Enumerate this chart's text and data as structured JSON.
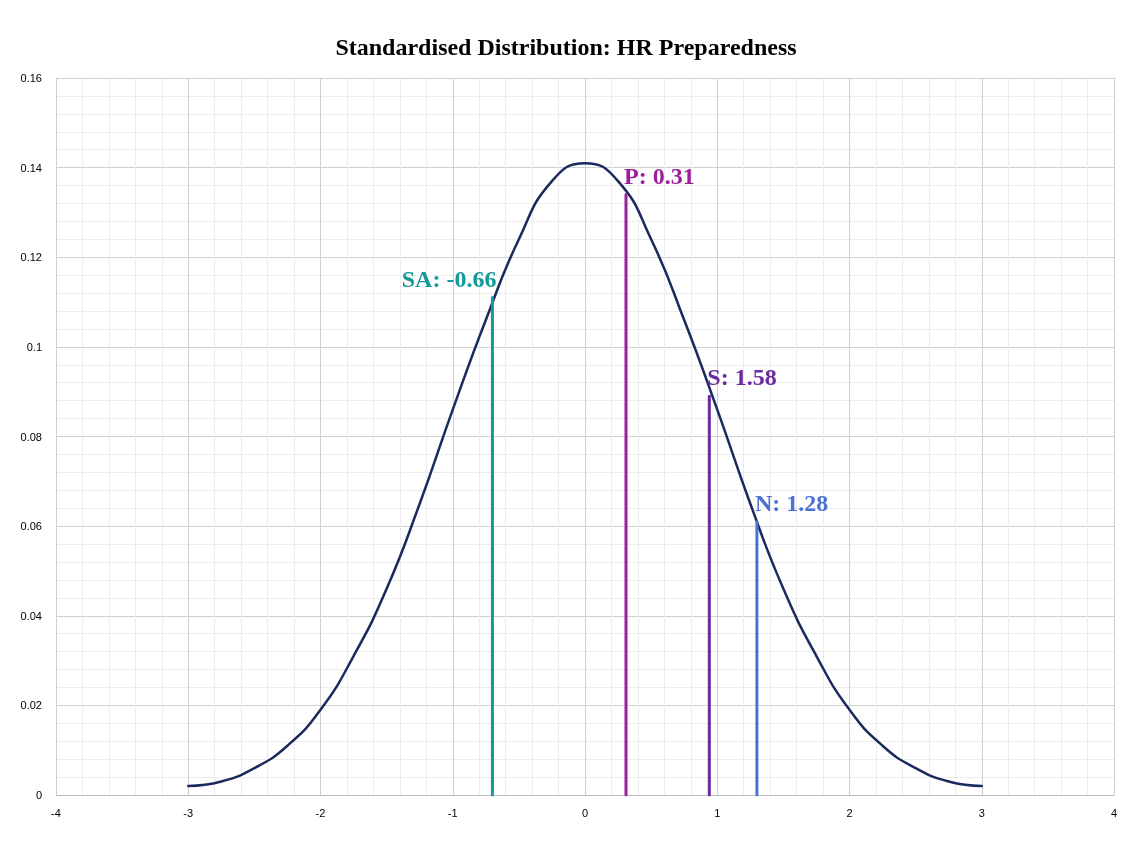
{
  "chart_data": {
    "type": "line",
    "title": "Standardised Distribution: HR Preparedness",
    "x": [
      -3,
      -2.75,
      -2.5,
      -2.25,
      -2,
      -1.75,
      -1.5,
      -1.25,
      -1,
      -0.75,
      -0.5,
      -0.25,
      0,
      0.25,
      0.5,
      0.75,
      1,
      1.25,
      1.5,
      1.75,
      2,
      2.25,
      2.5,
      2.75,
      3
    ],
    "series": [
      {
        "color": "#1b2a5e",
        "values": [
          0.002,
          0.003,
          0.006,
          0.011,
          0.019,
          0.031,
          0.046,
          0.065,
          0.086,
          0.106,
          0.124,
          0.137,
          0.141,
          0.137,
          0.124,
          0.106,
          0.086,
          0.065,
          0.046,
          0.031,
          0.019,
          0.011,
          0.006,
          0.003,
          0.002
        ]
      },
      {
        "name": "SA: -0.66",
        "color": "#13999a",
        "x": [
          -0.7,
          -0.7
        ],
        "values": [
          0,
          0.111
        ]
      },
      {
        "name": "P: 0.31",
        "color": "#9b1f9b",
        "x": [
          0.31,
          0.31
        ],
        "values": [
          0,
          0.134
        ]
      },
      {
        "name": "S: 1.58",
        "color": "#6a2aa0",
        "x": [
          0.94,
          0.94
        ],
        "values": [
          0,
          0.089
        ]
      },
      {
        "name": "N: 1.28",
        "color": "#4a72d4",
        "x": [
          1.3,
          1.3
        ],
        "values": [
          0,
          0.061
        ]
      }
    ],
    "xlim": [
      -4,
      4
    ],
    "xticks": [
      -4,
      -3,
      -2,
      -1,
      0,
      1,
      2,
      3,
      4
    ],
    "ylim": [
      0,
      0.16
    ],
    "yticks": [
      0,
      0.02,
      0.04,
      0.06,
      0.08,
      0.1,
      0.12,
      0.14,
      0.16
    ],
    "grid": true,
    "legend": false,
    "marker": "none",
    "line_style": "solid"
  }
}
